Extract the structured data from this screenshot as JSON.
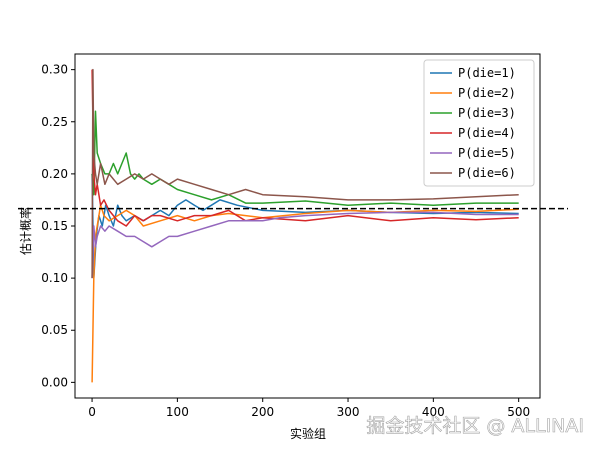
{
  "watermark": "掘金技术社区 @ ALLINAI",
  "chart_data": {
    "type": "line",
    "title": "",
    "xlabel": "实验组",
    "ylabel": "估计概率",
    "xlim": [
      -20,
      525
    ],
    "ylim": [
      -0.015,
      0.315
    ],
    "xticks": [
      0,
      100,
      200,
      300,
      400,
      500
    ],
    "yticks": [
      0.0,
      0.05,
      0.1,
      0.15,
      0.2,
      0.25,
      0.3
    ],
    "grid": false,
    "legend": "top-right",
    "reference_line": {
      "y": 0.1667,
      "style": "dashed",
      "color": "#000000"
    },
    "series": [
      {
        "name": "P(die=1)",
        "color": "#1f77b4",
        "x": [
          0,
          2,
          5,
          8,
          12,
          16,
          20,
          25,
          30,
          35,
          40,
          50,
          60,
          70,
          80,
          90,
          100,
          110,
          120,
          130,
          140,
          150,
          170,
          200,
          250,
          300,
          350,
          400,
          450,
          500
        ],
        "y": [
          0.2,
          0.1,
          0.14,
          0.16,
          0.15,
          0.17,
          0.16,
          0.15,
          0.17,
          0.16,
          0.155,
          0.16,
          0.155,
          0.16,
          0.165,
          0.16,
          0.17,
          0.175,
          0.17,
          0.165,
          0.17,
          0.175,
          0.17,
          0.165,
          0.163,
          0.165,
          0.163,
          0.162,
          0.163,
          0.162
        ]
      },
      {
        "name": "P(die=2)",
        "color": "#ff7f0e",
        "x": [
          0,
          2,
          4,
          6,
          8,
          10,
          14,
          20,
          30,
          40,
          50,
          60,
          80,
          100,
          120,
          140,
          160,
          180,
          200,
          250,
          300,
          350,
          400,
          450,
          500
        ],
        "y": [
          0.0,
          0.1,
          0.14,
          0.15,
          0.16,
          0.17,
          0.16,
          0.155,
          0.16,
          0.165,
          0.16,
          0.15,
          0.155,
          0.16,
          0.155,
          0.16,
          0.162,
          0.16,
          0.158,
          0.162,
          0.165,
          0.163,
          0.165,
          0.164,
          0.166
        ]
      },
      {
        "name": "P(die=3)",
        "color": "#2ca02c",
        "x": [
          0,
          2,
          4,
          6,
          10,
          15,
          20,
          25,
          30,
          35,
          40,
          45,
          50,
          55,
          60,
          70,
          80,
          90,
          100,
          120,
          140,
          160,
          180,
          200,
          250,
          300,
          350,
          400,
          450,
          500
        ],
        "y": [
          0.2,
          0.18,
          0.26,
          0.22,
          0.21,
          0.2,
          0.2,
          0.21,
          0.2,
          0.21,
          0.22,
          0.2,
          0.195,
          0.2,
          0.195,
          0.19,
          0.195,
          0.19,
          0.185,
          0.18,
          0.175,
          0.18,
          0.172,
          0.172,
          0.174,
          0.17,
          0.172,
          0.17,
          0.172,
          0.172
        ]
      },
      {
        "name": "P(die=4)",
        "color": "#d62728",
        "x": [
          0,
          1,
          2,
          4,
          6,
          8,
          10,
          14,
          20,
          25,
          30,
          40,
          50,
          60,
          70,
          80,
          100,
          120,
          140,
          160,
          180,
          200,
          250,
          300,
          350,
          400,
          450,
          500
        ],
        "y": [
          0.3,
          0.25,
          0.2,
          0.18,
          0.19,
          0.18,
          0.17,
          0.175,
          0.165,
          0.16,
          0.155,
          0.15,
          0.16,
          0.155,
          0.16,
          0.16,
          0.155,
          0.16,
          0.16,
          0.165,
          0.155,
          0.158,
          0.155,
          0.16,
          0.155,
          0.158,
          0.156,
          0.158
        ]
      },
      {
        "name": "P(die=5)",
        "color": "#9467bd",
        "x": [
          0,
          2,
          4,
          6,
          10,
          15,
          20,
          30,
          40,
          50,
          60,
          70,
          80,
          90,
          100,
          120,
          140,
          160,
          180,
          200,
          220,
          250,
          300,
          350,
          400,
          450,
          500
        ],
        "y": [
          0.1,
          0.15,
          0.13,
          0.14,
          0.15,
          0.145,
          0.15,
          0.145,
          0.14,
          0.14,
          0.135,
          0.13,
          0.135,
          0.14,
          0.14,
          0.145,
          0.15,
          0.155,
          0.155,
          0.155,
          0.158,
          0.16,
          0.162,
          0.163,
          0.163,
          0.161,
          0.161
        ]
      },
      {
        "name": "P(die=6)",
        "color": "#8c564b",
        "x": [
          0,
          1,
          2,
          4,
          6,
          8,
          10,
          15,
          20,
          25,
          30,
          40,
          50,
          60,
          70,
          80,
          90,
          100,
          120,
          140,
          160,
          180,
          200,
          250,
          300,
          350,
          400,
          450,
          500
        ],
        "y": [
          0.1,
          0.3,
          0.22,
          0.2,
          0.19,
          0.2,
          0.21,
          0.19,
          0.2,
          0.195,
          0.19,
          0.195,
          0.2,
          0.195,
          0.2,
          0.195,
          0.19,
          0.195,
          0.19,
          0.185,
          0.18,
          0.185,
          0.18,
          0.178,
          0.175,
          0.175,
          0.176,
          0.178,
          0.18
        ]
      }
    ]
  }
}
